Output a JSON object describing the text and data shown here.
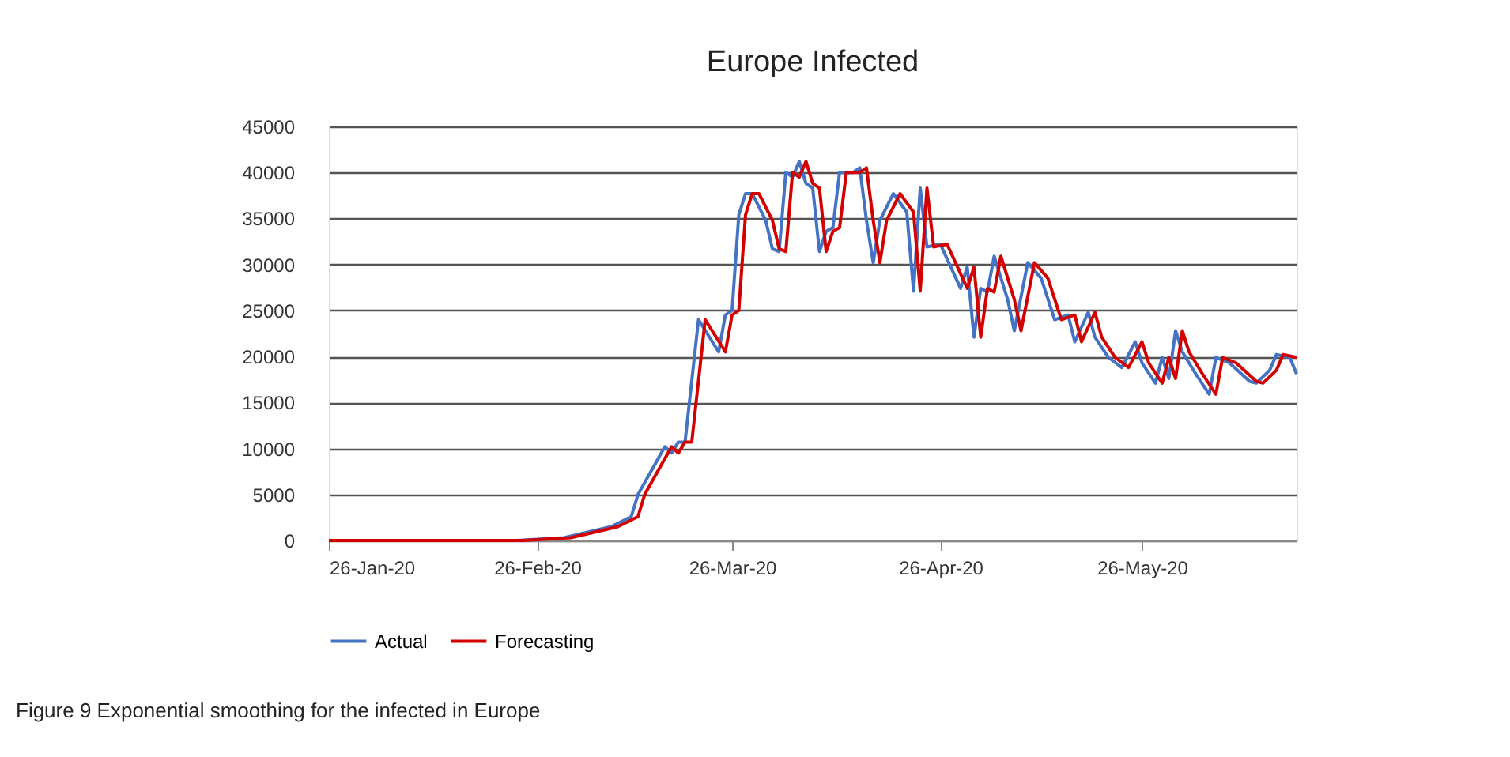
{
  "chart_data": {
    "type": "line",
    "title": "Europe Infected",
    "xlim": [
      "2020-01-26",
      "2020-06-18"
    ],
    "xticks": [
      {
        "value": "2020-01-26",
        "label": "26-Jan-20"
      },
      {
        "value": "2020-02-26",
        "label": "26-Feb-20"
      },
      {
        "value": "2020-03-26",
        "label": "26-Mar-20"
      },
      {
        "value": "2020-04-26",
        "label": "26-Apr-20"
      },
      {
        "value": "2020-05-26",
        "label": "26-May-20"
      }
    ],
    "ylim": [
      0,
      45000
    ],
    "yticks": [
      0,
      5000,
      10000,
      15000,
      20000,
      25000,
      30000,
      35000,
      40000,
      45000
    ],
    "grid": "y",
    "legend": "bottom",
    "marker": "none",
    "line_style": "solid",
    "series": [
      {
        "name": "Actual",
        "color": "#4472c4",
        "x": [
          "2020-01-26",
          "2020-02-23",
          "2020-03-01",
          "2020-03-08",
          "2020-03-11",
          "2020-03-12",
          "2020-03-16",
          "2020-03-17",
          "2020-03-18",
          "2020-03-19",
          "2020-03-21",
          "2020-03-24",
          "2020-03-25",
          "2020-03-26",
          "2020-03-27",
          "2020-03-28",
          "2020-03-29",
          "2020-03-31",
          "2020-04-01",
          "2020-04-02",
          "2020-04-03",
          "2020-04-04",
          "2020-04-05",
          "2020-04-06",
          "2020-04-07",
          "2020-04-08",
          "2020-04-09",
          "2020-04-10",
          "2020-04-11",
          "2020-04-13",
          "2020-04-14",
          "2020-04-15",
          "2020-04-16",
          "2020-04-17",
          "2020-04-19",
          "2020-04-21",
          "2020-04-22",
          "2020-04-23",
          "2020-04-24",
          "2020-04-26",
          "2020-04-29",
          "2020-04-30",
          "2020-05-01",
          "2020-05-02",
          "2020-05-03",
          "2020-05-04",
          "2020-05-06",
          "2020-05-07",
          "2020-05-09",
          "2020-05-11",
          "2020-05-13",
          "2020-05-15",
          "2020-05-16",
          "2020-05-18",
          "2020-05-19",
          "2020-05-21",
          "2020-05-23",
          "2020-05-25",
          "2020-05-26",
          "2020-05-28",
          "2020-05-29",
          "2020-05-30",
          "2020-05-31",
          "2020-06-01",
          "2020-06-03",
          "2020-06-05",
          "2020-06-06",
          "2020-06-08",
          "2020-06-11",
          "2020-06-12",
          "2020-06-14",
          "2020-06-15",
          "2020-06-17",
          "2020-06-18"
        ],
        "values": [
          0,
          0,
          300,
          1500,
          2600,
          5000,
          10200,
          9500,
          10700,
          10700,
          24000,
          20500,
          24500,
          25000,
          35400,
          37700,
          37700,
          34800,
          31700,
          31400,
          40000,
          39500,
          41200,
          38800,
          38300,
          31400,
          33600,
          34000,
          40000,
          40000,
          40500,
          34800,
          30200,
          34800,
          37700,
          35700,
          27100,
          38300,
          31900,
          32200,
          27400,
          29700,
          22100,
          27400,
          27000,
          30900,
          26200,
          22800,
          30200,
          28500,
          24000,
          24500,
          21600,
          24800,
          22100,
          19900,
          18800,
          21600,
          19300,
          17100,
          19900,
          17600,
          22800,
          20500,
          18100,
          15900,
          19900,
          19300,
          17300,
          17100,
          18500,
          20200,
          19900,
          18100
        ]
      },
      {
        "name": "Forecasting",
        "color": "#d40000",
        "x": [
          "2020-01-26",
          "2020-02-24",
          "2020-03-02",
          "2020-03-09",
          "2020-03-12",
          "2020-03-13",
          "2020-03-17",
          "2020-03-18",
          "2020-03-19",
          "2020-03-20",
          "2020-03-22",
          "2020-03-25",
          "2020-03-26",
          "2020-03-27",
          "2020-03-28",
          "2020-03-29",
          "2020-03-30",
          "2020-04-01",
          "2020-04-02",
          "2020-04-03",
          "2020-04-04",
          "2020-04-05",
          "2020-04-06",
          "2020-04-07",
          "2020-04-08",
          "2020-04-09",
          "2020-04-10",
          "2020-04-11",
          "2020-04-12",
          "2020-04-14",
          "2020-04-15",
          "2020-04-16",
          "2020-04-17",
          "2020-04-18",
          "2020-04-20",
          "2020-04-22",
          "2020-04-23",
          "2020-04-24",
          "2020-04-25",
          "2020-04-27",
          "2020-04-30",
          "2020-05-01",
          "2020-05-02",
          "2020-05-03",
          "2020-05-04",
          "2020-05-05",
          "2020-05-07",
          "2020-05-08",
          "2020-05-10",
          "2020-05-12",
          "2020-05-14",
          "2020-05-16",
          "2020-05-17",
          "2020-05-19",
          "2020-05-20",
          "2020-05-22",
          "2020-05-24",
          "2020-05-26",
          "2020-05-27",
          "2020-05-29",
          "2020-05-30",
          "2020-05-31",
          "2020-06-01",
          "2020-06-02",
          "2020-06-04",
          "2020-06-06",
          "2020-06-07",
          "2020-06-09",
          "2020-06-12",
          "2020-06-13",
          "2020-06-15",
          "2020-06-16",
          "2020-06-18"
        ],
        "values": [
          0,
          0,
          300,
          1500,
          2600,
          5000,
          10200,
          9500,
          10700,
          10700,
          24000,
          20500,
          24500,
          25000,
          35400,
          37700,
          37700,
          34800,
          31700,
          31400,
          40000,
          39500,
          41200,
          38800,
          38300,
          31400,
          33600,
          34000,
          40000,
          40000,
          40500,
          34800,
          30200,
          34800,
          37700,
          35700,
          27100,
          38300,
          31900,
          32200,
          27400,
          29700,
          22100,
          27400,
          27000,
          30900,
          26200,
          22800,
          30200,
          28500,
          24000,
          24500,
          21600,
          24800,
          22100,
          19900,
          18800,
          21600,
          19300,
          17100,
          19900,
          17600,
          22800,
          20500,
          18100,
          15900,
          19900,
          19300,
          17300,
          17100,
          18500,
          20200,
          19900
        ]
      }
    ],
    "annotations": [
      "Figure 9  Exponential smoothing for the infected in Europe"
    ]
  }
}
